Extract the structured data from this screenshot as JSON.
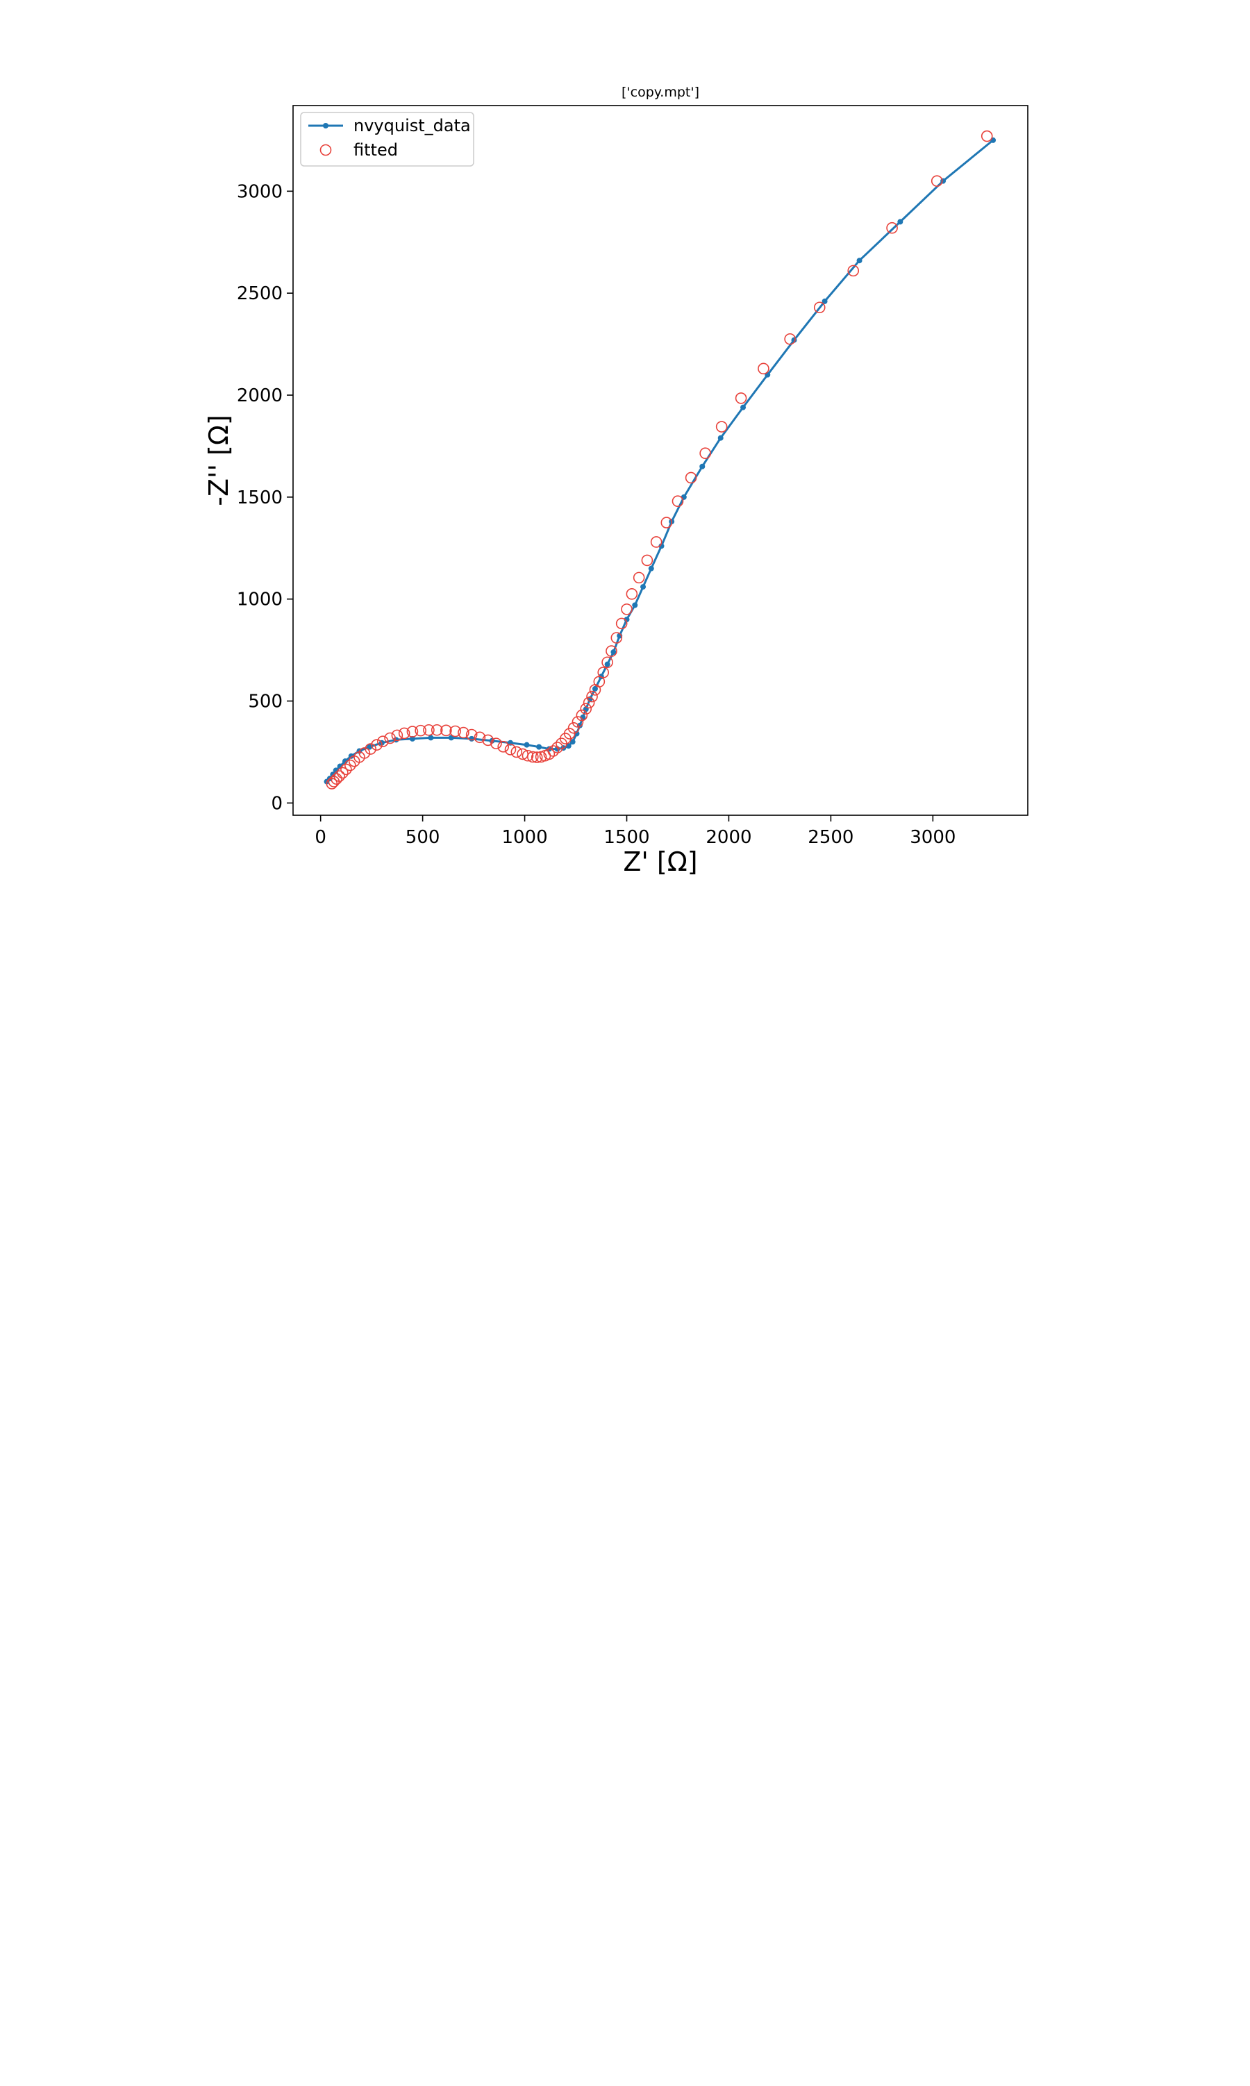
{
  "chart_data": {
    "type": "scatter",
    "title": "['copy.mpt']",
    "xlabel": "Z' [Ω]",
    "ylabel": "-Z'' [Ω]",
    "xlim": [
      -135,
      3465
    ],
    "ylim": [
      -60,
      3420
    ],
    "xticks": [
      0,
      500,
      1000,
      1500,
      2000,
      2500,
      3000
    ],
    "yticks": [
      0,
      500,
      1000,
      1500,
      2000,
      2500,
      3000
    ],
    "grid": false,
    "legend_position": "upper-left",
    "series": [
      {
        "name": "nvyquist_data",
        "style": "line-with-dot-markers",
        "color": "#1f77b4",
        "x": [
          30,
          45,
          60,
          75,
          95,
          120,
          150,
          190,
          240,
          300,
          370,
          450,
          540,
          640,
          740,
          840,
          930,
          1010,
          1070,
          1120,
          1160,
          1190,
          1215,
          1235,
          1255,
          1270,
          1285,
          1300,
          1320,
          1345,
          1375,
          1405,
          1435,
          1465,
          1500,
          1540,
          1580,
          1620,
          1670,
          1720,
          1780,
          1870,
          1960,
          2070,
          2190,
          2320,
          2470,
          2640,
          2840,
          3050,
          3295
        ],
        "y": [
          105,
          120,
          140,
          160,
          180,
          205,
          230,
          255,
          275,
          295,
          310,
          315,
          320,
          320,
          315,
          305,
          295,
          285,
          275,
          265,
          265,
          270,
          280,
          300,
          340,
          380,
          420,
          460,
          510,
          560,
          620,
          680,
          740,
          820,
          900,
          970,
          1060,
          1150,
          1260,
          1380,
          1500,
          1650,
          1790,
          1940,
          2100,
          2270,
          2460,
          2660,
          2850,
          3050,
          3250
        ]
      },
      {
        "name": "fitted",
        "style": "hollow-circle-markers",
        "color": "#e8413a",
        "x": [
          55,
          65,
          78,
          92,
          108,
          125,
          145,
          165,
          190,
          215,
          245,
          275,
          305,
          340,
          375,
          410,
          450,
          490,
          530,
          570,
          615,
          660,
          700,
          740,
          780,
          820,
          860,
          895,
          930,
          960,
          990,
          1015,
          1040,
          1060,
          1080,
          1100,
          1120,
          1140,
          1160,
          1180,
          1200,
          1220,
          1240,
          1260,
          1280,
          1300,
          1315,
          1330,
          1345,
          1365,
          1385,
          1405,
          1425,
          1450,
          1475,
          1500,
          1525,
          1560,
          1600,
          1645,
          1695,
          1750,
          1815,
          1885,
          1965,
          2060,
          2170,
          2300,
          2445,
          2610,
          2800,
          3020,
          3265
        ],
        "y": [
          95,
          105,
          118,
          132,
          148,
          165,
          185,
          205,
          225,
          245,
          265,
          285,
          302,
          318,
          332,
          342,
          350,
          355,
          358,
          358,
          356,
          352,
          345,
          335,
          322,
          308,
          292,
          276,
          262,
          250,
          240,
          232,
          226,
          224,
          226,
          232,
          240,
          255,
          272,
          292,
          316,
          340,
          368,
          398,
          430,
          462,
          492,
          522,
          555,
          595,
          640,
          690,
          745,
          810,
          880,
          950,
          1025,
          1105,
          1190,
          1280,
          1375,
          1480,
          1595,
          1715,
          1845,
          1985,
          2130,
          2275,
          2430,
          2610,
          2820,
          3050,
          3270
        ]
      }
    ]
  }
}
